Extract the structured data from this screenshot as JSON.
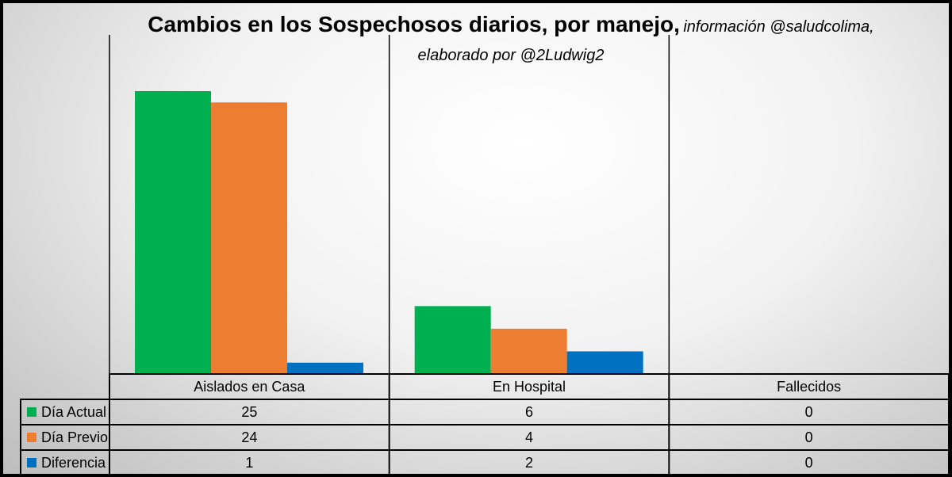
{
  "title": {
    "main": "Cambios en los Sospechosos diarios, por manejo,",
    "sub": "información @saludcolima, elaborado por @2Ludwig2"
  },
  "chart_data": {
    "type": "bar",
    "categories": [
      "Aislados en Casa",
      "En Hospital",
      "Fallecidos"
    ],
    "series": [
      {
        "name": "Día Actual",
        "values": [
          25,
          6,
          0
        ],
        "color": "#00b050"
      },
      {
        "name": "Día Previo",
        "values": [
          24,
          4,
          0
        ],
        "color": "#ed7d31"
      },
      {
        "name": "Diferencia",
        "values": [
          1,
          2,
          0
        ],
        "color": "#0070c0"
      }
    ],
    "ylim": [
      0,
      25
    ],
    "grid": false,
    "legend": "data-table"
  }
}
